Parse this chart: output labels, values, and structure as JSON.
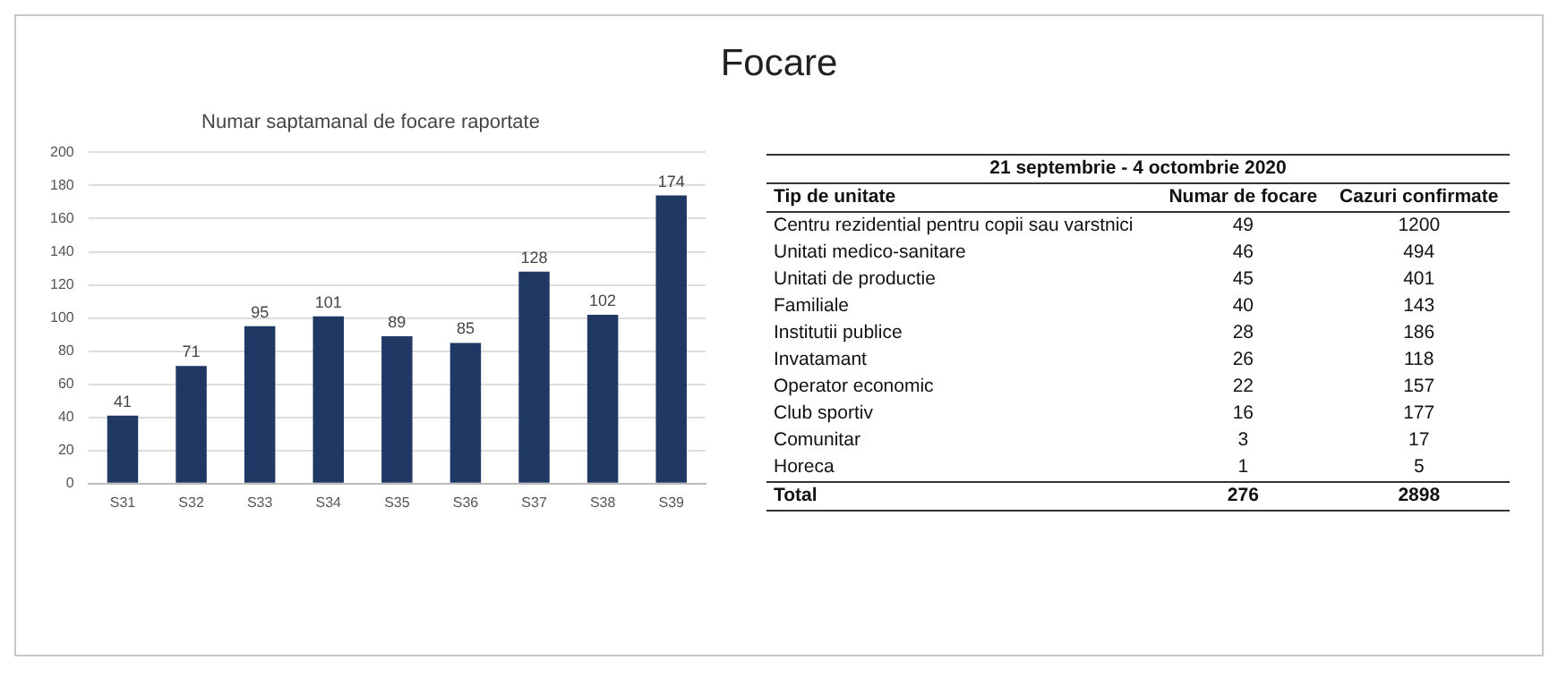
{
  "chart_data": [
    {
      "type": "bar",
      "title": "Focare",
      "subtitle": "Numar saptamanal de focare raportate",
      "categories": [
        "S31",
        "S32",
        "S33",
        "S34",
        "S35",
        "S36",
        "S37",
        "S38",
        "S39"
      ],
      "values": [
        41,
        71,
        95,
        101,
        89,
        85,
        128,
        102,
        174
      ],
      "color": "#1f3864",
      "ylim": [
        0,
        200
      ],
      "yticks": [
        0,
        20,
        40,
        60,
        80,
        100,
        120,
        140,
        160,
        180,
        200
      ],
      "grid": "y",
      "data_labels": true,
      "legend": false
    },
    {
      "type": "other",
      "title": "21 septembrie - 4 octombrie 2020",
      "ylabel": "Tip de unitate",
      "categories": [
        "Centru rezidential pentru copii sau varstnici",
        "Unitati medico-sanitare",
        "Unitati de productie",
        "Familiale",
        "Institutii publice",
        "Invatamant",
        "Operator economic",
        "Club sportiv",
        "Comunitar",
        "Horeca",
        "Total"
      ],
      "series": [
        {
          "name": "Numar de focare",
          "values": [
            49,
            46,
            45,
            40,
            28,
            26,
            22,
            16,
            3,
            1,
            276
          ]
        },
        {
          "name": "Cazuri confirmate",
          "values": [
            1200,
            494,
            401,
            143,
            186,
            118,
            157,
            177,
            17,
            5,
            2898
          ]
        }
      ],
      "data_labels": true
    }
  ]
}
